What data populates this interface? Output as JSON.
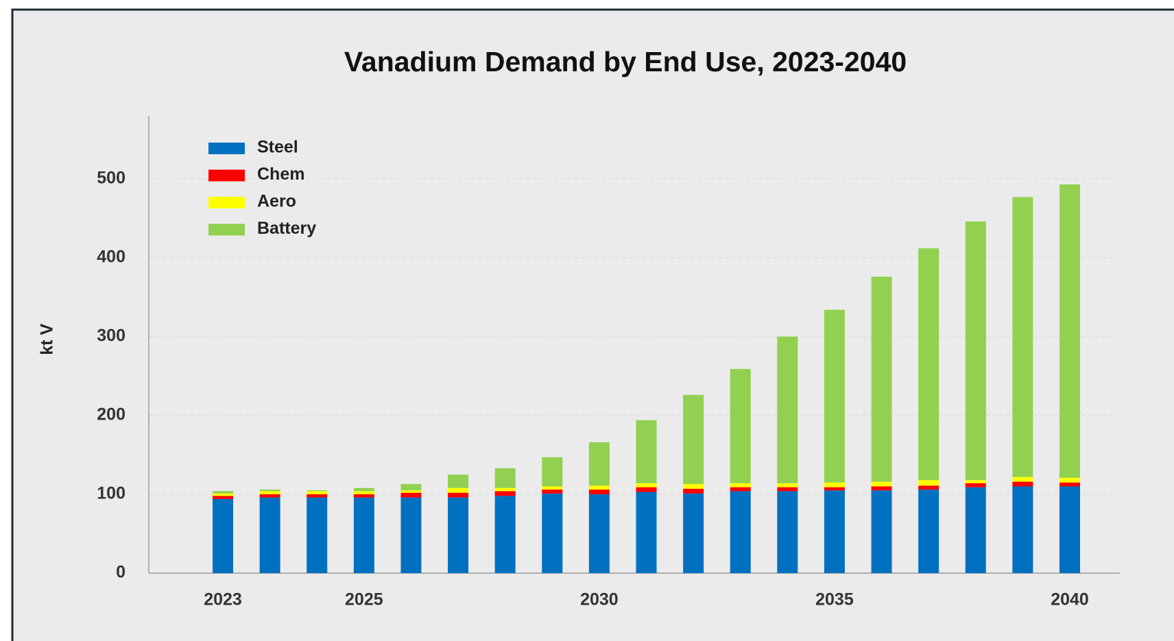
{
  "chart_data": {
    "type": "stacked_bar",
    "title": "Vanadium Demand by End Use, 2023-2040",
    "y_label": "kt V",
    "categories": [
      "2023",
      null,
      null,
      "2025",
      null,
      null,
      null,
      null,
      "2030",
      null,
      null,
      null,
      null,
      "2035",
      null,
      null,
      null,
      null,
      "2040"
    ],
    "series": [
      {
        "name": "Steel",
        "color": "#0070c0",
        "values": [
          94,
          96,
          96,
          96,
          96,
          96,
          98,
          101,
          100,
          103,
          101,
          104,
          104,
          105,
          105,
          106,
          109,
          110,
          110
        ]
      },
      {
        "name": "Chem",
        "color": "#ff0000",
        "values": [
          4,
          4,
          4,
          4,
          6,
          6,
          6,
          5,
          6,
          6,
          6,
          5,
          5,
          4,
          5,
          5,
          5,
          6,
          5
        ]
      },
      {
        "name": "Aero",
        "color": "#ffff00",
        "values": [
          3,
          4,
          4,
          4,
          3,
          6,
          4,
          4,
          5,
          5,
          6,
          5,
          5,
          6,
          6,
          7,
          4,
          6,
          6
        ]
      },
      {
        "name": "Battery",
        "color": "#92d050",
        "values": [
          3,
          2,
          1,
          4,
          8,
          17,
          25,
          37,
          55,
          80,
          113,
          145,
          186,
          219,
          260,
          294,
          328,
          355,
          372
        ]
      }
    ],
    "ylim": [
      0,
      580
    ],
    "yticks": [
      0,
      100,
      200,
      300,
      400,
      500
    ],
    "grid": true,
    "legend": "upper left"
  }
}
